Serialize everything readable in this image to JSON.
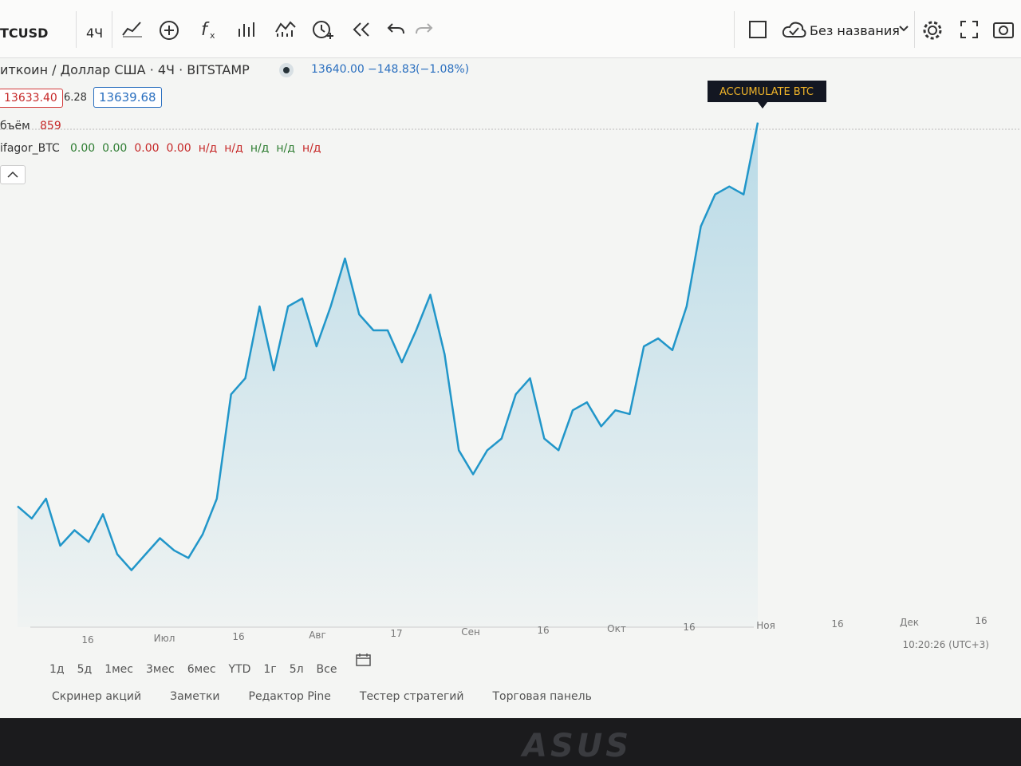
{
  "toolbar": {
    "symbol": "TCUSD",
    "interval": "4Ч",
    "layout_name": "Без названия"
  },
  "legend": {
    "title": "иткоин / Доллар США · 4Ч · BITSTAMP",
    "last": "13640.00",
    "change": "−148.83",
    "change_pct": "(−1.08%)",
    "bid": "13633.40",
    "spread": "6.28",
    "ask": "13639.68",
    "volume_label": "бъём",
    "volume_value": "859",
    "indicator_name": "ifagor_BTC",
    "indicator_values": [
      "0.00",
      "0.00",
      "0.00",
      "0.00",
      "н/д",
      "н/д",
      "н/д",
      "н/д",
      "н/д"
    ]
  },
  "tooltip": "ACCUMULATE BTC",
  "x_labels": [
    "16",
    "Июл",
    "16",
    "Авг",
    "17",
    "Сен",
    "16",
    "Окт",
    "16",
    "Ноя",
    "16",
    "Дек",
    "16"
  ],
  "clock": "10:20:26 (UTC+3)",
  "ranges": [
    "1д",
    "5д",
    "1мес",
    "3мес",
    "6мес",
    "YTD",
    "1г",
    "5л",
    "Все"
  ],
  "tabs": [
    "Скринер акций",
    "Заметки",
    "Редактор Pine",
    "Тестер стратегий",
    "Торговая панель"
  ],
  "brand": "ASUS",
  "chart_data": {
    "type": "area",
    "color": "#2196c9",
    "ylim": [
      8400,
      14000
    ],
    "values": [
      9720,
      9590,
      9800,
      9300,
      9465,
      9340,
      9635,
      9210,
      9040,
      9210,
      9380,
      9250,
      9170,
      9420,
      9800,
      10910,
      11080,
      11845,
      11165,
      11845,
      11930,
      11420,
      11845,
      12355,
      11760,
      11590,
      11590,
      11250,
      11590,
      11970,
      11335,
      10315,
      10060,
      10315,
      10440,
      10910,
      11080,
      10440,
      10315,
      10740,
      10825,
      10570,
      10740,
      10700,
      11420,
      11505,
      11380,
      11845,
      12695,
      13035,
      13120,
      13035,
      13800
    ]
  }
}
